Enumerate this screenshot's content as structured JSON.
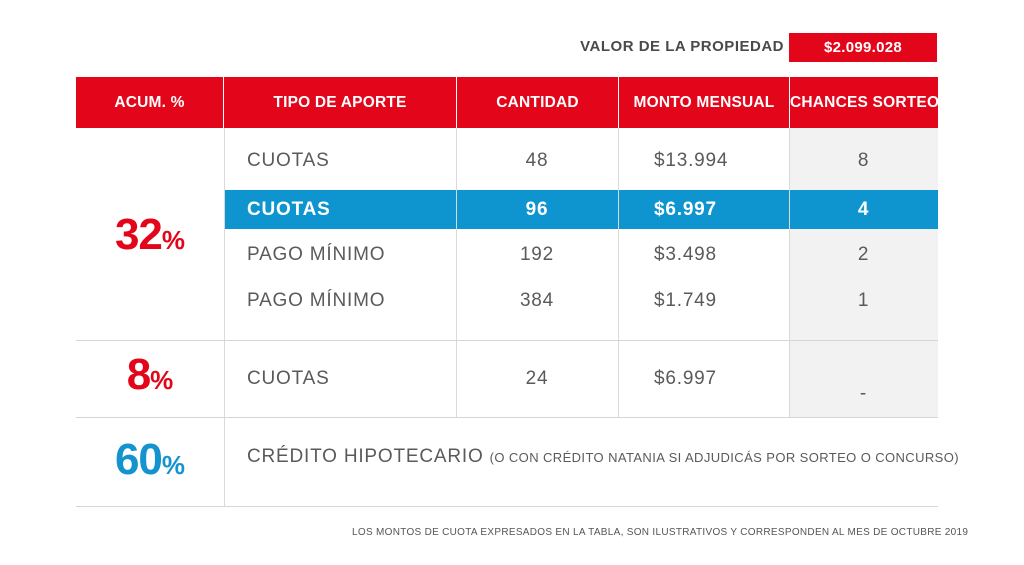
{
  "property": {
    "label": "VALOR DE LA PROPIEDAD",
    "value": "$2.099.028"
  },
  "header": {
    "acum": "ACUM. %",
    "tipo": "TIPO DE APORTE",
    "cantidad": "CANTIDAD",
    "monto": "MONTO MENSUAL",
    "chances": "CHANCES SORTEO"
  },
  "groups": [
    {
      "pct": "32",
      "pct_sign": "%",
      "color": "#e3061b",
      "rows": [
        {
          "tipo": "CUOTAS",
          "cantidad": "48",
          "monto": "$13.994",
          "chances": "8"
        },
        {
          "tipo": "CUOTAS",
          "cantidad": "96",
          "monto": "$6.997",
          "chances": "4",
          "highlighted": true
        },
        {
          "tipo": "PAGO MÍNIMO",
          "cantidad": "192",
          "monto": "$3.498",
          "chances": "2"
        },
        {
          "tipo": "PAGO MÍNIMO",
          "cantidad": "384",
          "monto": "$1.749",
          "chances": "1"
        }
      ]
    },
    {
      "pct": "8",
      "pct_sign": "%",
      "color": "#e3061b",
      "rows": [
        {
          "tipo": "CUOTAS",
          "cantidad": "24",
          "monto": "$6.997",
          "chances": "-"
        }
      ]
    },
    {
      "pct": "60",
      "pct_sign": "%",
      "color": "#1394cf",
      "credit": {
        "main": "CRÉDITO HIPOTECARIO",
        "note": "(O CON CRÉDITO NATANIA SI ADJUDICÁS POR SORTEO O CONCURSO)"
      }
    }
  ],
  "highlight_color": "#0e94cf",
  "footnote": "LOS MONTOS DE CUOTA EXPRESADOS EN LA TABLA, SON ILUSTRATIVOS Y CORRESPONDEN AL MES DE OCTUBRE 2019"
}
